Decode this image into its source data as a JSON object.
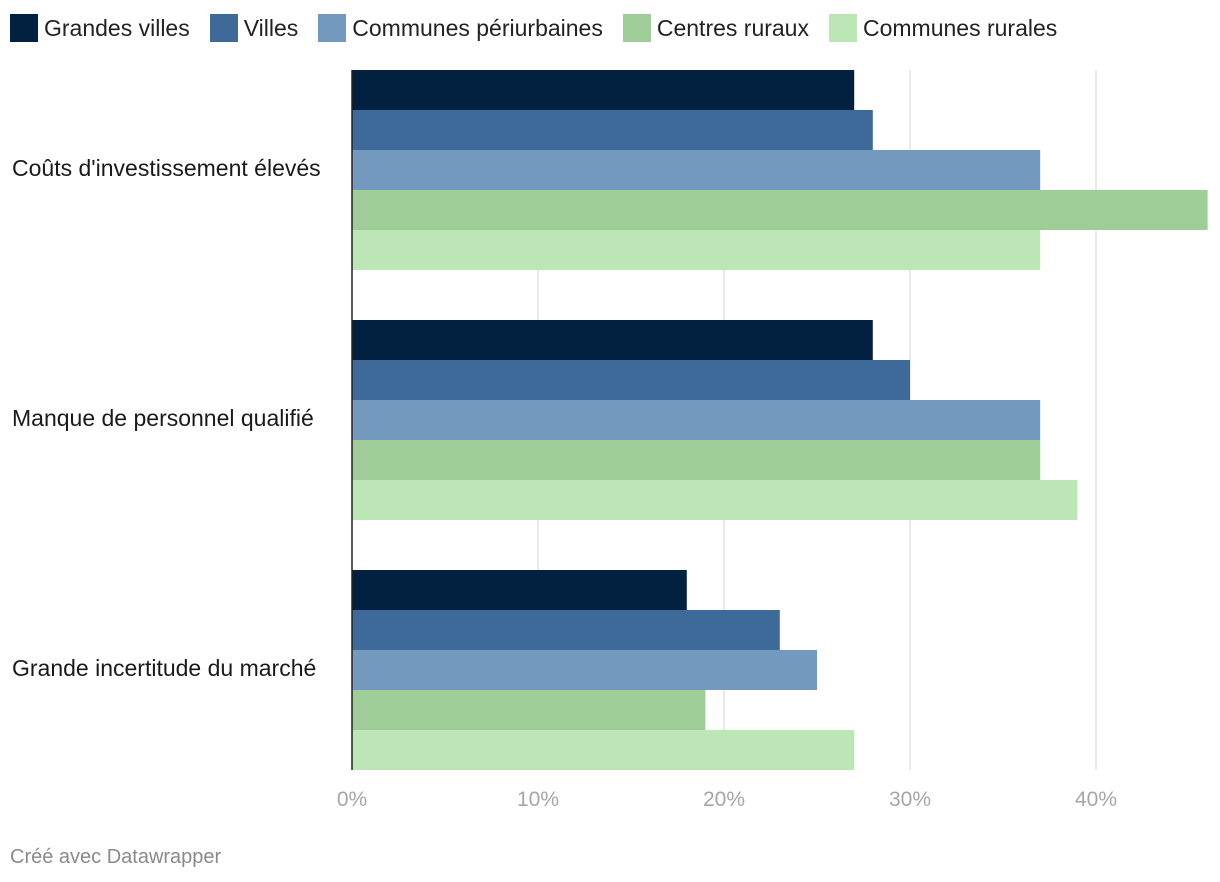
{
  "chart_data": {
    "type": "bar",
    "orientation": "horizontal",
    "categories": [
      "Coûts d'investissement élevés",
      "Manque de personnel qualifié",
      "Grande incertitude du marché"
    ],
    "series": [
      {
        "name": "Grandes villes",
        "color": "#02203f",
        "values": [
          27,
          28,
          18
        ]
      },
      {
        "name": "Villes",
        "color": "#3d6a99",
        "values": [
          28,
          30,
          23
        ]
      },
      {
        "name": "Communes périurbaines",
        "color": "#7499be",
        "values": [
          37,
          37,
          25
        ]
      },
      {
        "name": "Centres ruraux",
        "color": "#9ecd98",
        "values": [
          46,
          37,
          19
        ]
      },
      {
        "name": "Communes rurales",
        "color": "#bce6b6",
        "values": [
          37,
          39,
          27
        ]
      }
    ],
    "x_ticks": [
      {
        "value": 0,
        "label": "0%"
      },
      {
        "value": 10,
        "label": "10%"
      },
      {
        "value": 20,
        "label": "20%"
      },
      {
        "value": 30,
        "label": "30%"
      },
      {
        "value": 40,
        "label": "40%"
      }
    ],
    "xlim": [
      0,
      46
    ],
    "grid": true,
    "legend_position": "top",
    "title": "",
    "xlabel": "",
    "ylabel": ""
  },
  "footer": {
    "credit": "Créé avec Datawrapper"
  }
}
